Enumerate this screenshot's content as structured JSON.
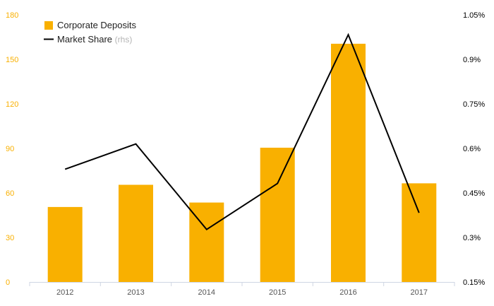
{
  "chart_data": {
    "type": "bar+line",
    "categories": [
      "2012",
      "2013",
      "2014",
      "2015",
      "2016",
      "2017"
    ],
    "series": [
      {
        "name": "Corporate Deposits",
        "type": "bar",
        "axis": "left",
        "color": "#f9b000",
        "values": [
          50.5,
          65.5,
          53.5,
          90.5,
          160.5,
          66.5
        ]
      },
      {
        "name": "Market Share",
        "legend_suffix": "(rhs)",
        "type": "line",
        "axis": "right",
        "color": "#000000",
        "values": [
          0.53,
          0.615,
          0.327,
          0.482,
          0.983,
          0.383
        ]
      }
    ],
    "y_left": {
      "min": 0,
      "max": 180,
      "ticks": [
        "0",
        "30",
        "60",
        "90",
        "120",
        "150",
        "180"
      ],
      "tick_color": "#f9b000"
    },
    "y_right": {
      "min": 0.15,
      "max": 1.05,
      "ticks": [
        "0.15%",
        "0.3%",
        "0.45%",
        "0.6%",
        "0.75%",
        "0.9%",
        "1.05%"
      ],
      "tick_color": "#000000"
    },
    "grid": false,
    "legend": "top-left",
    "title": "",
    "xlabel": "",
    "ylabel": ""
  }
}
